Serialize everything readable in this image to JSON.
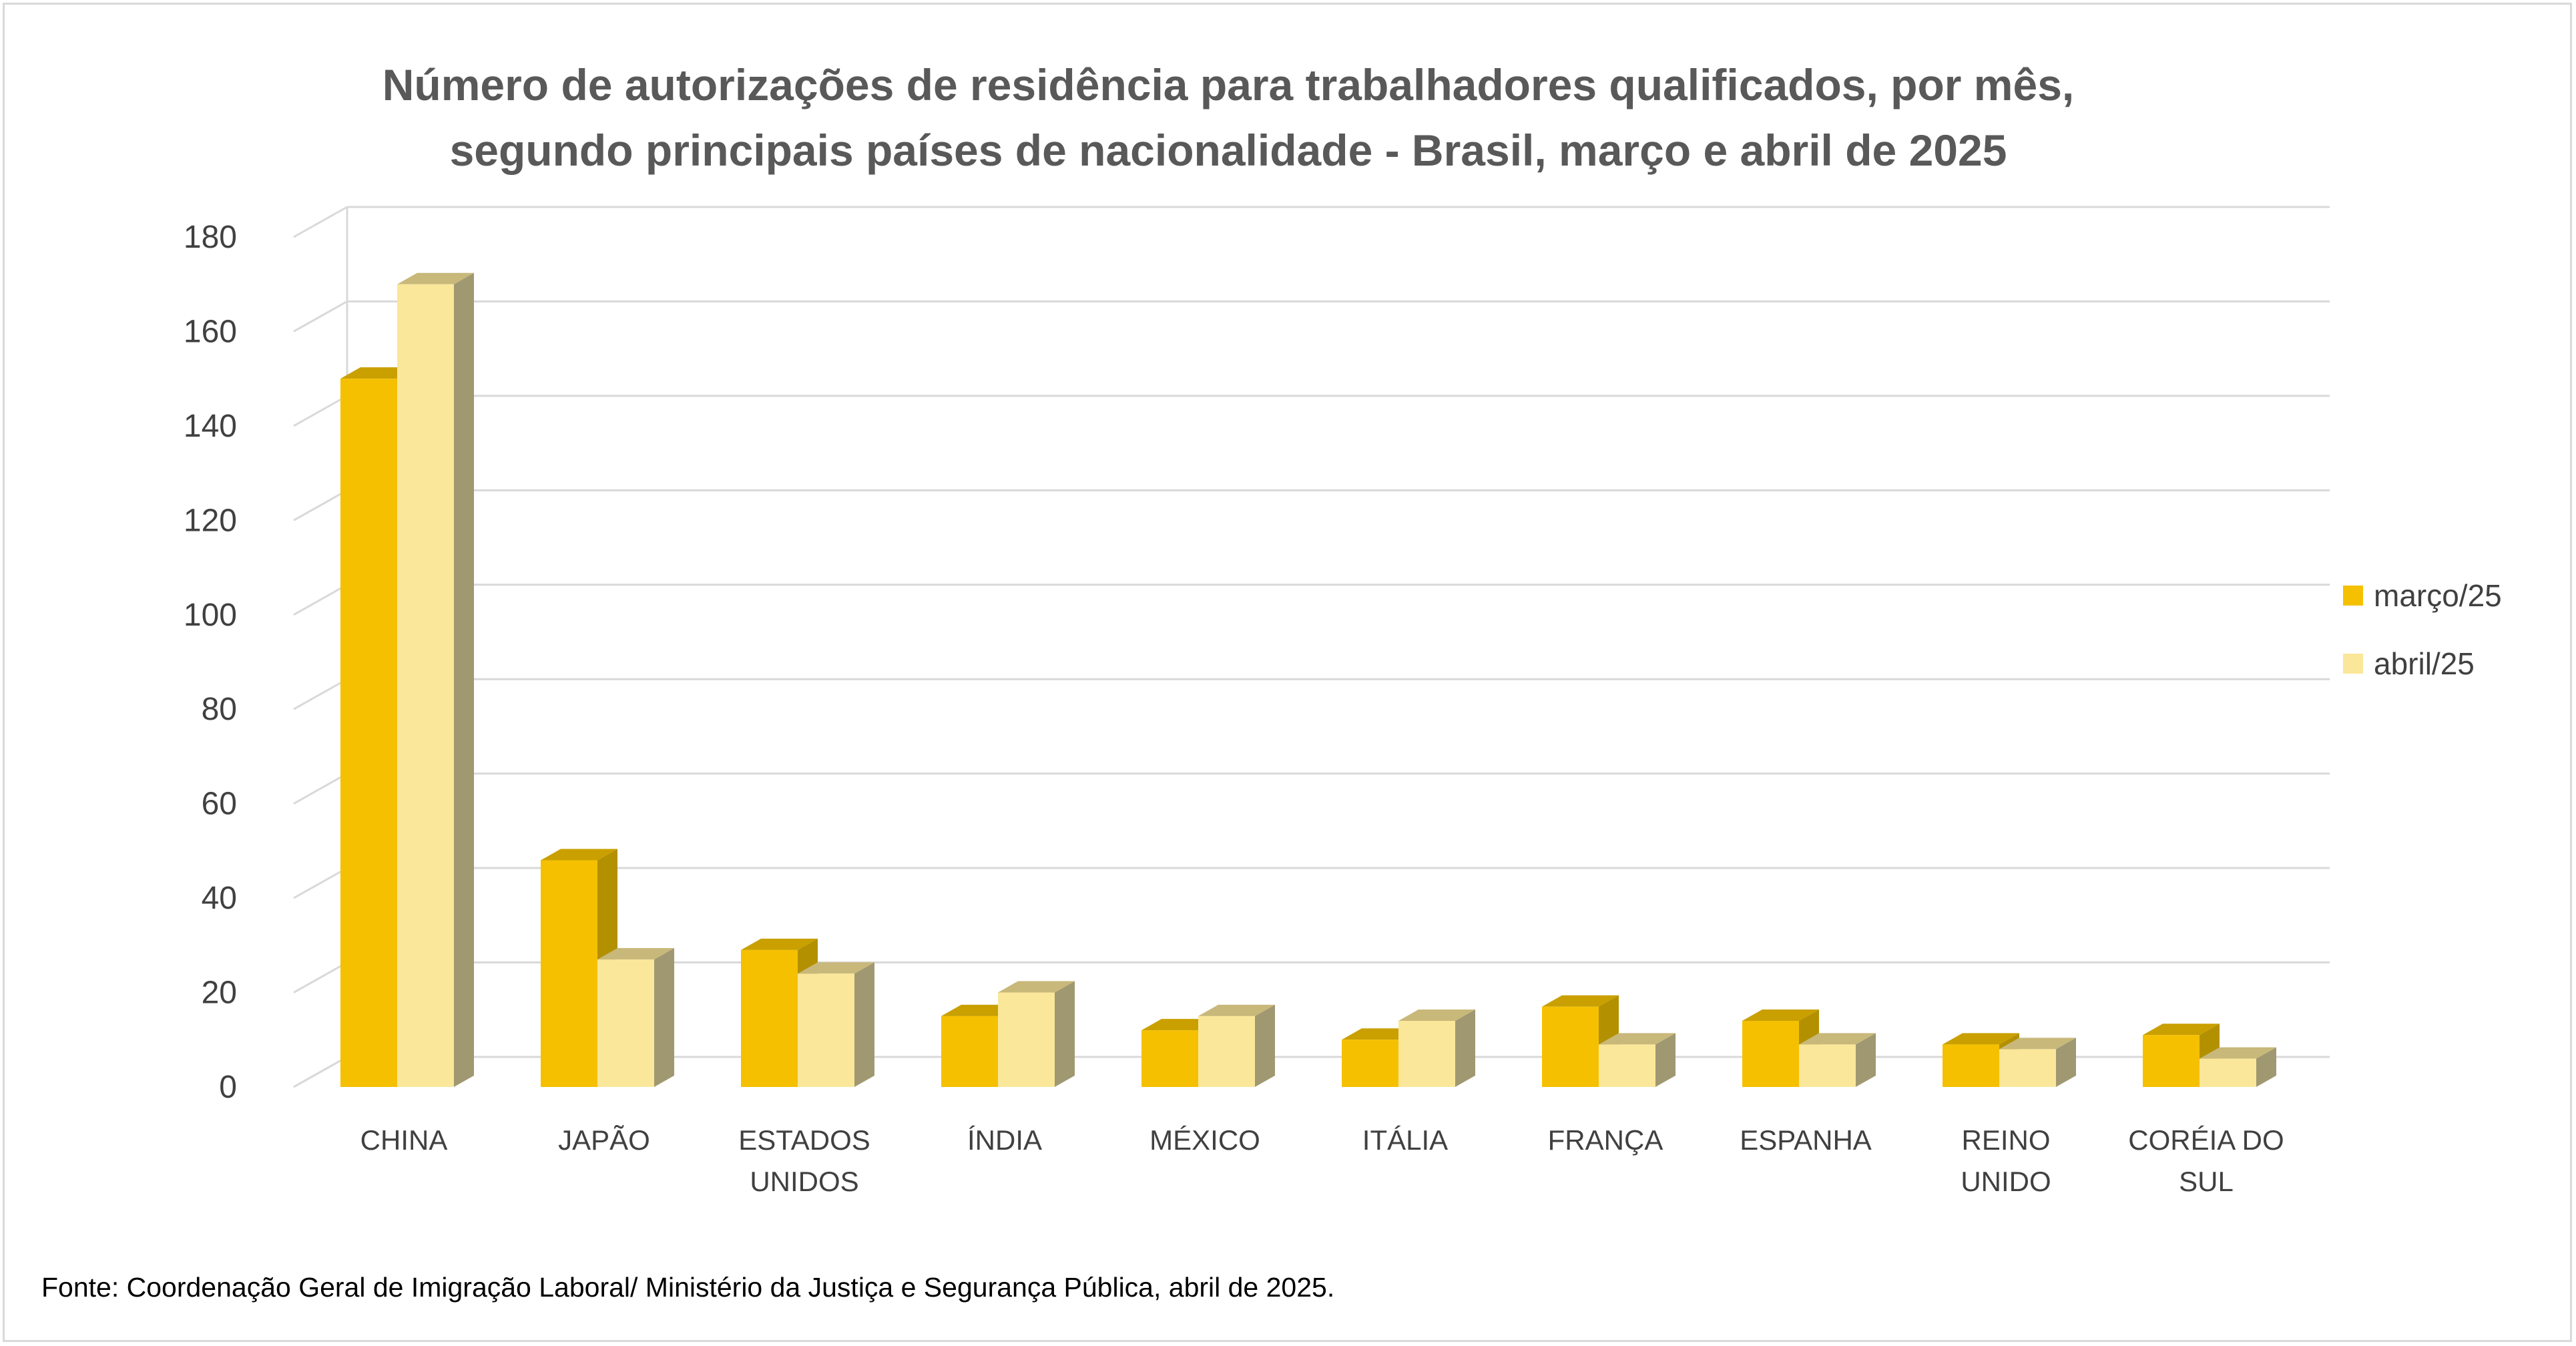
{
  "chart_data": {
    "type": "bar",
    "style": "3d-clustered-column",
    "title_lines": [
      "Número de autorizações de residência para trabalhadores qualificados, por mês,",
      "segundo principais países de nacionalidade - Brasil, março e abril de 2025"
    ],
    "categories": [
      [
        "CHINA"
      ],
      [
        "JAPÃO"
      ],
      [
        "ESTADOS",
        "UNIDOS"
      ],
      [
        "ÍNDIA"
      ],
      [
        "MÉXICO"
      ],
      [
        "ITÁLIA"
      ],
      [
        "FRANÇA"
      ],
      [
        "ESPANHA"
      ],
      [
        "REINO",
        "UNIDO"
      ],
      [
        "CORÉIA DO",
        "SUL"
      ]
    ],
    "series": [
      {
        "name": "março/25",
        "values": [
          150,
          48,
          29,
          15,
          12,
          10,
          17,
          14,
          9,
          11
        ],
        "color": "#f5c000",
        "top_color": "#c9a000",
        "side_color": "#b39000"
      },
      {
        "name": "abril/25",
        "values": [
          170,
          27,
          24,
          20,
          15,
          14,
          9,
          9,
          8,
          6
        ],
        "color": "#fae79a",
        "top_color": "#c8b87a",
        "side_color": "#a09870"
      }
    ],
    "yticks": [
      "0",
      "20",
      "40",
      "60",
      "80",
      "100",
      "120",
      "140",
      "160",
      "180"
    ],
    "ylim": [
      0,
      180
    ],
    "grid": true,
    "legend_position": "right",
    "xlabel": "",
    "ylabel": ""
  },
  "source_note": "Fonte: Coordenação Geral de Imigração Laboral/ Ministério da Justiça e Segurança Pública, abril de 2025."
}
